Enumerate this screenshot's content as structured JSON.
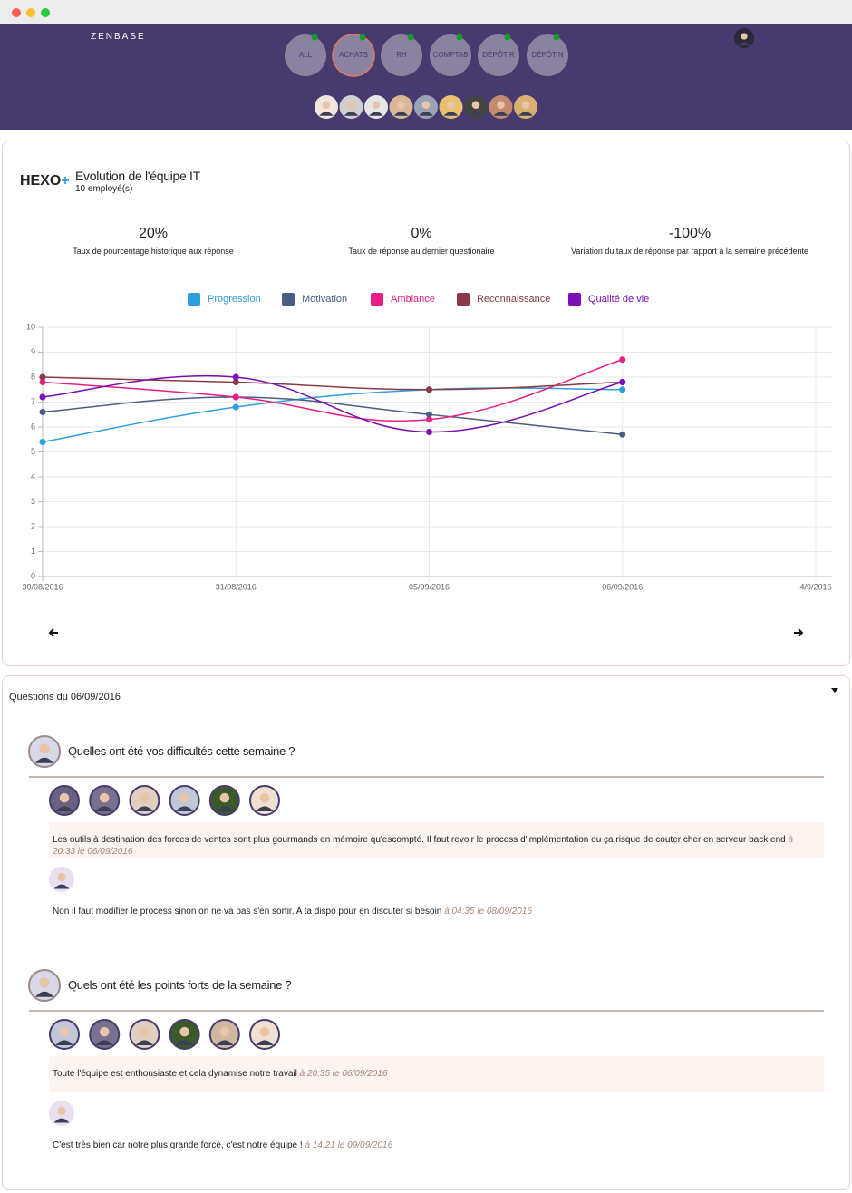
{
  "header": {
    "brand": "ZENBASE",
    "tabs": [
      "ALL",
      "ACHATS",
      "RH",
      "COMPTAB",
      "DÉPÔT R",
      "DÉPÔT N"
    ]
  },
  "panel": {
    "logo": "HEXO",
    "logo_plus": "+",
    "title": "Evolution de l'équipe IT",
    "subtitle": "10 employé(s)",
    "stats": [
      {
        "value": "20%",
        "label": "Taux de pourcentage historique aux réponse"
      },
      {
        "value": "0%",
        "label": "Taux de réponse au dernier questionaire"
      },
      {
        "value": "-100%",
        "label": "Variation du taux de réponse par rapport à la semaine précédente"
      }
    ]
  },
  "chart_data": {
    "type": "line",
    "categories": [
      "30/08/2016",
      "31/08/2016",
      "05/09/2016",
      "06/09/2016",
      "4/9/2016"
    ],
    "series": [
      {
        "name": "Progression",
        "color": "#2d9ee0",
        "values": [
          5.4,
          6.8,
          7.5,
          7.5,
          null
        ]
      },
      {
        "name": "Motivation",
        "color": "#4a5d85",
        "values": [
          6.6,
          7.2,
          6.5,
          5.7,
          null
        ]
      },
      {
        "name": "Ambiance",
        "color": "#e91e82",
        "values": [
          7.8,
          7.2,
          6.3,
          8.7,
          null
        ]
      },
      {
        "name": "Reconnaissance",
        "color": "#8b3a4a",
        "values": [
          8.0,
          7.8,
          7.5,
          7.8,
          null
        ]
      },
      {
        "name": "Qualité de vie",
        "color": "#7b0fb5",
        "values": [
          7.2,
          8.0,
          5.8,
          7.8,
          null
        ]
      }
    ],
    "ylim": [
      0,
      10
    ],
    "yticks": [
      0,
      1,
      2,
      3,
      4,
      5,
      6,
      7,
      8,
      9,
      10
    ],
    "grid": true,
    "legend": "top"
  },
  "questions": {
    "heading": "Questions du 06/09/2016",
    "items": [
      {
        "title": "Quelles ont été vos difficultés cette semaine ?",
        "comment": {
          "text": "Les outils à destination des forces de ventes sont plus gourmands en mémoire qu'escompté. Il faut revoir le process d'implémentation ou ça risque de couter cher en serveur back end",
          "time": "à 20:33 le 06/09/2016"
        },
        "reply": {
          "text": "Non il faut modifier le process sinon on ne va pas s'en sortir. A ta dispo pour en discuter si besoin",
          "time": "à 04:35 le 08/09/2016"
        }
      },
      {
        "title": "Quels ont été les points forts de la semaine ?",
        "comment": {
          "text": "Toute l'équipe est enthousiaste et cela dynamise notre travail",
          "time": "à 20:35 le 06/09/2016"
        },
        "reply": {
          "text": "C'est très bien car notre plus grande force, c'est notre équipe !",
          "time": "à 14:21 le 09/09/2016"
        }
      }
    ]
  }
}
